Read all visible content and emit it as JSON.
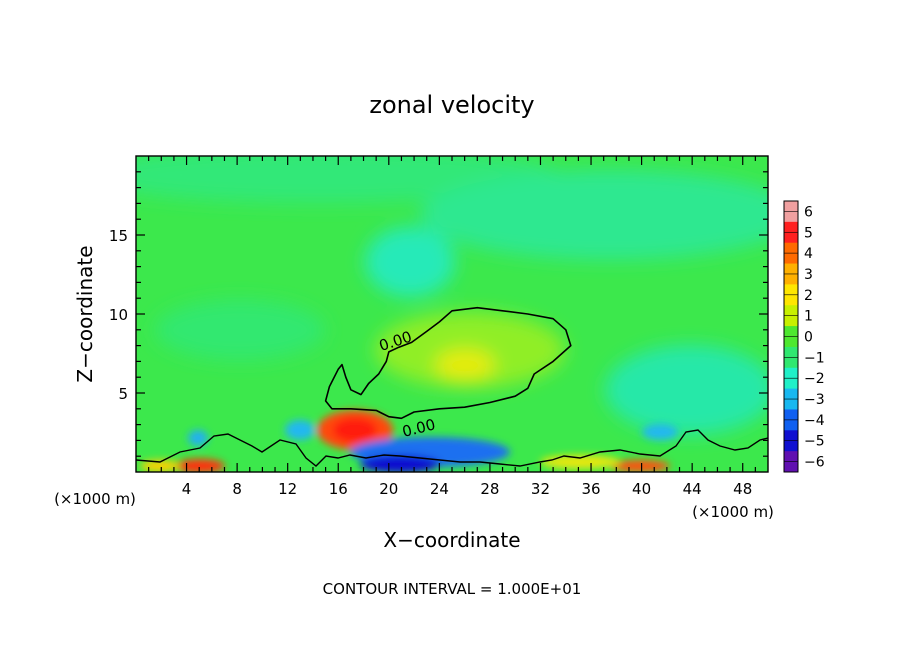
{
  "chart_data": {
    "type": "heatmap",
    "title": "zonal velocity",
    "xlabel": "X−coordinate",
    "ylabel": "Z−coordinate",
    "x_unit_left": "(×1000 m)",
    "x_unit_right": "(×1000 m)",
    "xlim": [
      0,
      50
    ],
    "ylim": [
      0,
      20
    ],
    "x_ticks": [
      4,
      8,
      12,
      16,
      20,
      24,
      28,
      32,
      36,
      40,
      44,
      48
    ],
    "y_ticks": [
      5,
      10,
      15
    ],
    "colorbar": {
      "levels": [
        6,
        5,
        4,
        3,
        2,
        1,
        0,
        -1,
        -2,
        -3,
        -4,
        -5,
        -6
      ],
      "labels": [
        "6",
        "5",
        "4",
        "3",
        "2",
        "1",
        "0",
        "−1",
        "−2",
        "−3",
        "−4",
        "−5",
        "−6"
      ],
      "colors": [
        "#f0a0a0",
        "#ff2020",
        "#ff6a00",
        "#ffb000",
        "#ffe600",
        "#c8f000",
        "#4ee830",
        "#30e870",
        "#20f0c8",
        "#18b8f0",
        "#1060f0",
        "#1010d0",
        "#6010b0"
      ]
    },
    "contour_labels": [
      {
        "text": "0.00",
        "x": 22,
        "y": 8.3
      },
      {
        "text": "0.00",
        "x": 23.2,
        "y": 2.6
      }
    ],
    "contour_zero": [
      [
        24,
        9.5
      ],
      [
        25,
        10.2
      ],
      [
        27,
        10.4
      ],
      [
        29,
        10.2
      ],
      [
        31,
        10
      ],
      [
        33,
        9.7
      ],
      [
        34,
        9
      ],
      [
        34.4,
        8
      ],
      [
        33,
        7
      ],
      [
        31.5,
        6.2
      ],
      [
        31,
        5.3
      ],
      [
        30,
        4.8
      ],
      [
        28,
        4.4
      ],
      [
        26,
        4.1
      ],
      [
        24,
        4
      ],
      [
        22,
        3.8
      ],
      [
        21,
        3.4
      ],
      [
        20,
        3.5
      ],
      [
        19,
        3.9
      ],
      [
        17,
        4
      ],
      [
        15.5,
        4
      ],
      [
        15,
        4.5
      ],
      [
        15.3,
        5.4
      ],
      [
        16,
        6.5
      ],
      [
        16.3,
        6.8
      ],
      [
        16.6,
        6
      ],
      [
        17,
        5.2
      ],
      [
        17.8,
        4.9
      ],
      [
        18.4,
        5.6
      ],
      [
        19.2,
        6.2
      ],
      [
        19.8,
        7
      ],
      [
        20,
        7.6
      ],
      [
        20.8,
        7.9
      ],
      [
        21.8,
        8.2
      ],
      [
        23,
        8.9
      ],
      [
        24,
        9.5
      ]
    ],
    "contour_note": "CONTOUR INTERVAL = 1.000E+01"
  }
}
